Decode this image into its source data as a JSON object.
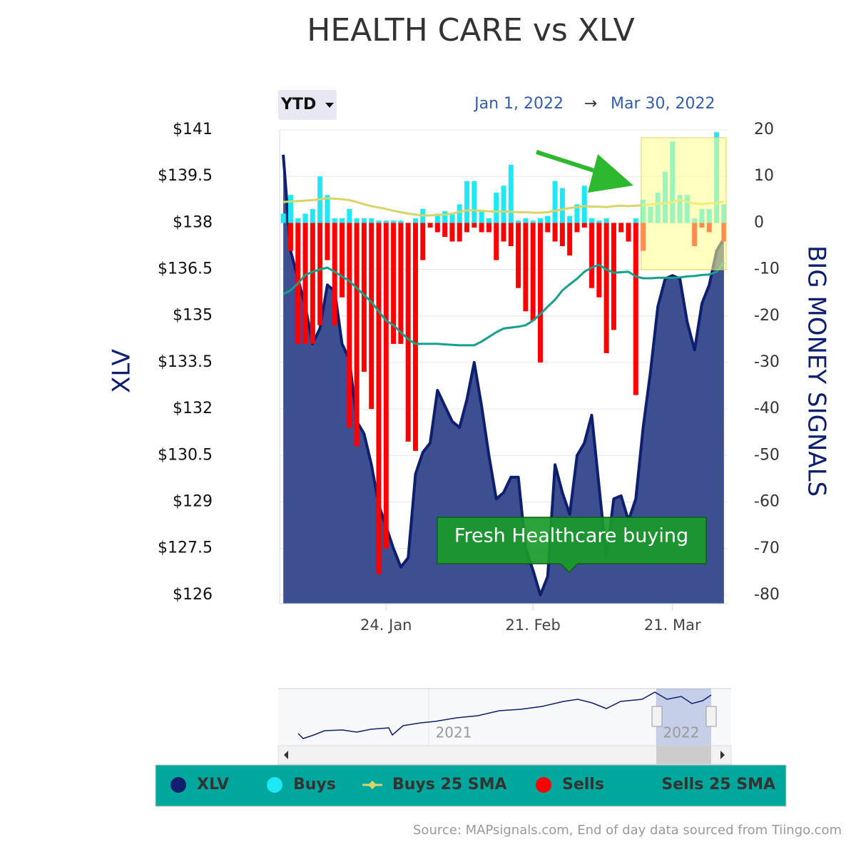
{
  "chart_data": {
    "type": "stock",
    "title": "HEALTH CARE vs XLV",
    "range_button": "YTD",
    "range_from": "Jan 1, 2022",
    "range_arrow": "→",
    "range_to": "Mar 30, 2022",
    "y_label": "XLV",
    "y2_label": "BIG MONEY SIGNALS",
    "annotation": "Fresh Healthcare buying",
    "navigator_labels": [
      "2021",
      "2022"
    ],
    "source": "Source: MAPsignals.com, End of day data sourced from Tiingo.com",
    "categories": [
      null,
      null,
      null,
      null,
      null,
      null,
      null,
      null,
      null,
      null,
      null,
      null,
      null,
      null,
      "24. Jan",
      null,
      null,
      null,
      null,
      null,
      null,
      null,
      null,
      null,
      null,
      null,
      null,
      null,
      null,
      null,
      null,
      null,
      null,
      null,
      "21. Feb",
      null,
      null,
      null,
      null,
      null,
      null,
      null,
      null,
      null,
      null,
      null,
      null,
      null,
      null,
      null,
      null,
      null,
      null,
      "21. Mar",
      null,
      null,
      null,
      null,
      null,
      null,
      null
    ],
    "ylim": [
      125.72,
      141
    ],
    "yticks": [
      {
        "value": 141,
        "label": "$141"
      },
      {
        "value": 139.5,
        "label": "$139.5"
      },
      {
        "value": 138,
        "label": "$138"
      },
      {
        "value": 136.5,
        "label": "$136.5"
      },
      {
        "value": 135,
        "label": "$135"
      },
      {
        "value": 133.5,
        "label": "$133.5"
      },
      {
        "value": 132,
        "label": "$132"
      },
      {
        "value": 130.5,
        "label": "$130.5"
      },
      {
        "value": 129,
        "label": "$129"
      },
      {
        "value": 127.5,
        "label": "$127.5"
      },
      {
        "value": 126,
        "label": "$126"
      }
    ],
    "y2lim": [
      -81.84,
      20
    ],
    "y2ticks": [
      20,
      10,
      0,
      -10,
      -20,
      -30,
      -40,
      -50,
      -60,
      -70,
      -80
    ],
    "grid": true,
    "series": [
      {
        "name": "XLV",
        "type": "area",
        "color": "#0d1f6e",
        "fill": "#3d4f91",
        "values": [
          140.2,
          137.1,
          136.2,
          135.3,
          134.1,
          134.6,
          136.0,
          135.8,
          134.1,
          133.6,
          131.6,
          131.2,
          130.2,
          128.9,
          128.2,
          127.5,
          126.9,
          127.2,
          129.9,
          130.6,
          130.9,
          132.6,
          132.1,
          131.6,
          131.4,
          132.3,
          133.5,
          132.1,
          130.5,
          129.1,
          129.3,
          129.8,
          129.8,
          127.5,
          126.8,
          126.0,
          126.6,
          130.2,
          129.3,
          128.6,
          130.5,
          130.9,
          131.8,
          129.5,
          127.2,
          129.1,
          129.2,
          128.4,
          129.1,
          131.4,
          133.2,
          135.3,
          136.2,
          136.3,
          136.2,
          134.8,
          133.9,
          135.4,
          136.0,
          137.1,
          137.5
        ]
      },
      {
        "name": "Buys",
        "type": "column",
        "axis": "y2",
        "color": "#1ee8f5",
        "values": [
          2,
          6,
          1,
          2,
          3,
          10,
          6,
          1,
          1,
          3,
          1,
          1,
          1,
          0.5,
          0.5,
          0.5,
          0.5,
          0,
          1,
          3,
          0,
          2,
          2.5,
          2,
          4,
          9,
          9,
          2.5,
          1,
          6.5,
          8,
          12.5,
          0.5,
          1,
          0.5,
          1,
          1.5,
          9,
          7.5,
          1.5,
          4,
          8,
          1,
          0.5,
          1,
          0,
          0,
          0,
          1,
          5,
          3.5,
          6.5,
          11,
          17.5,
          6,
          6,
          1,
          3,
          3,
          19.5,
          4
        ]
      },
      {
        "name": "Buys 25 SMA",
        "type": "line",
        "axis": "y2",
        "color": "#d9d46a",
        "values": [
          4.5,
          4.6,
          4.7,
          4.8,
          4.9,
          5.1,
          5.3,
          5.2,
          5.1,
          4.9,
          4.5,
          4,
          3.6,
          3.3,
          3,
          2.6,
          2.3,
          2,
          1.8,
          1.6,
          1.6,
          1.7,
          1.8,
          2,
          2.4,
          2.7,
          2.7,
          2.6,
          2.5,
          2.4,
          2.4,
          2.4,
          2.3,
          2.3,
          2.2,
          2.2,
          2.3,
          2.6,
          2.9,
          3.2,
          3.4,
          3.6,
          3.5,
          3.5,
          3.4,
          3.6,
          3.7,
          3.6,
          3.7,
          3.8,
          4,
          4.1,
          4.2,
          4.5,
          5,
          4.5,
          4.2,
          4,
          4.2,
          4.2,
          4.6
        ]
      },
      {
        "name": "Sells",
        "type": "column",
        "axis": "y2",
        "color": "#ff0000",
        "values": [
          0,
          -6,
          -26,
          -26,
          -26,
          -22,
          -8,
          -22,
          -16,
          -44,
          -48,
          -32,
          -40,
          -75.5,
          -70,
          -26,
          -26,
          -47,
          -49,
          -8,
          -1,
          -2,
          -3,
          -4,
          -4,
          -2,
          -1,
          -2,
          -2,
          -8,
          -4,
          -5,
          -14,
          -19,
          -21,
          -30,
          -2,
          -4,
          -5,
          -7,
          -2,
          -1,
          -14,
          -16,
          -28,
          -23,
          -2,
          -4,
          -37,
          -6,
          0,
          0,
          0,
          0,
          0,
          0,
          -5,
          -1,
          -2,
          0,
          -4
        ]
      },
      {
        "name": "Sells 25 SMA",
        "type": "line",
        "axis": "y2",
        "color": "#14a08a",
        "values": [
          -15.3,
          -14.5,
          -13,
          -11.2,
          -10.5,
          -10,
          -9.6,
          -10.5,
          -11.5,
          -12.5,
          -14,
          -15.5,
          -17,
          -19,
          -21,
          -22,
          -23.5,
          -25,
          -26,
          -26,
          -26,
          -26,
          -26.1,
          -26.2,
          -26.3,
          -26.3,
          -26.3,
          -25.5,
          -24.5,
          -23.5,
          -22.7,
          -22.5,
          -22.3,
          -22,
          -21,
          -19.6,
          -18,
          -16.5,
          -14.5,
          -13.2,
          -12,
          -10.5,
          -9.6,
          -9,
          -10,
          -10.7,
          -10.6,
          -10.5,
          -11.5,
          -11.9,
          -11.9,
          -11.8,
          -11.8,
          -11.8,
          -11.7,
          -11.5,
          -11.4,
          -11.2,
          -11.1,
          -10.5,
          -8.5
        ]
      }
    ]
  }
}
